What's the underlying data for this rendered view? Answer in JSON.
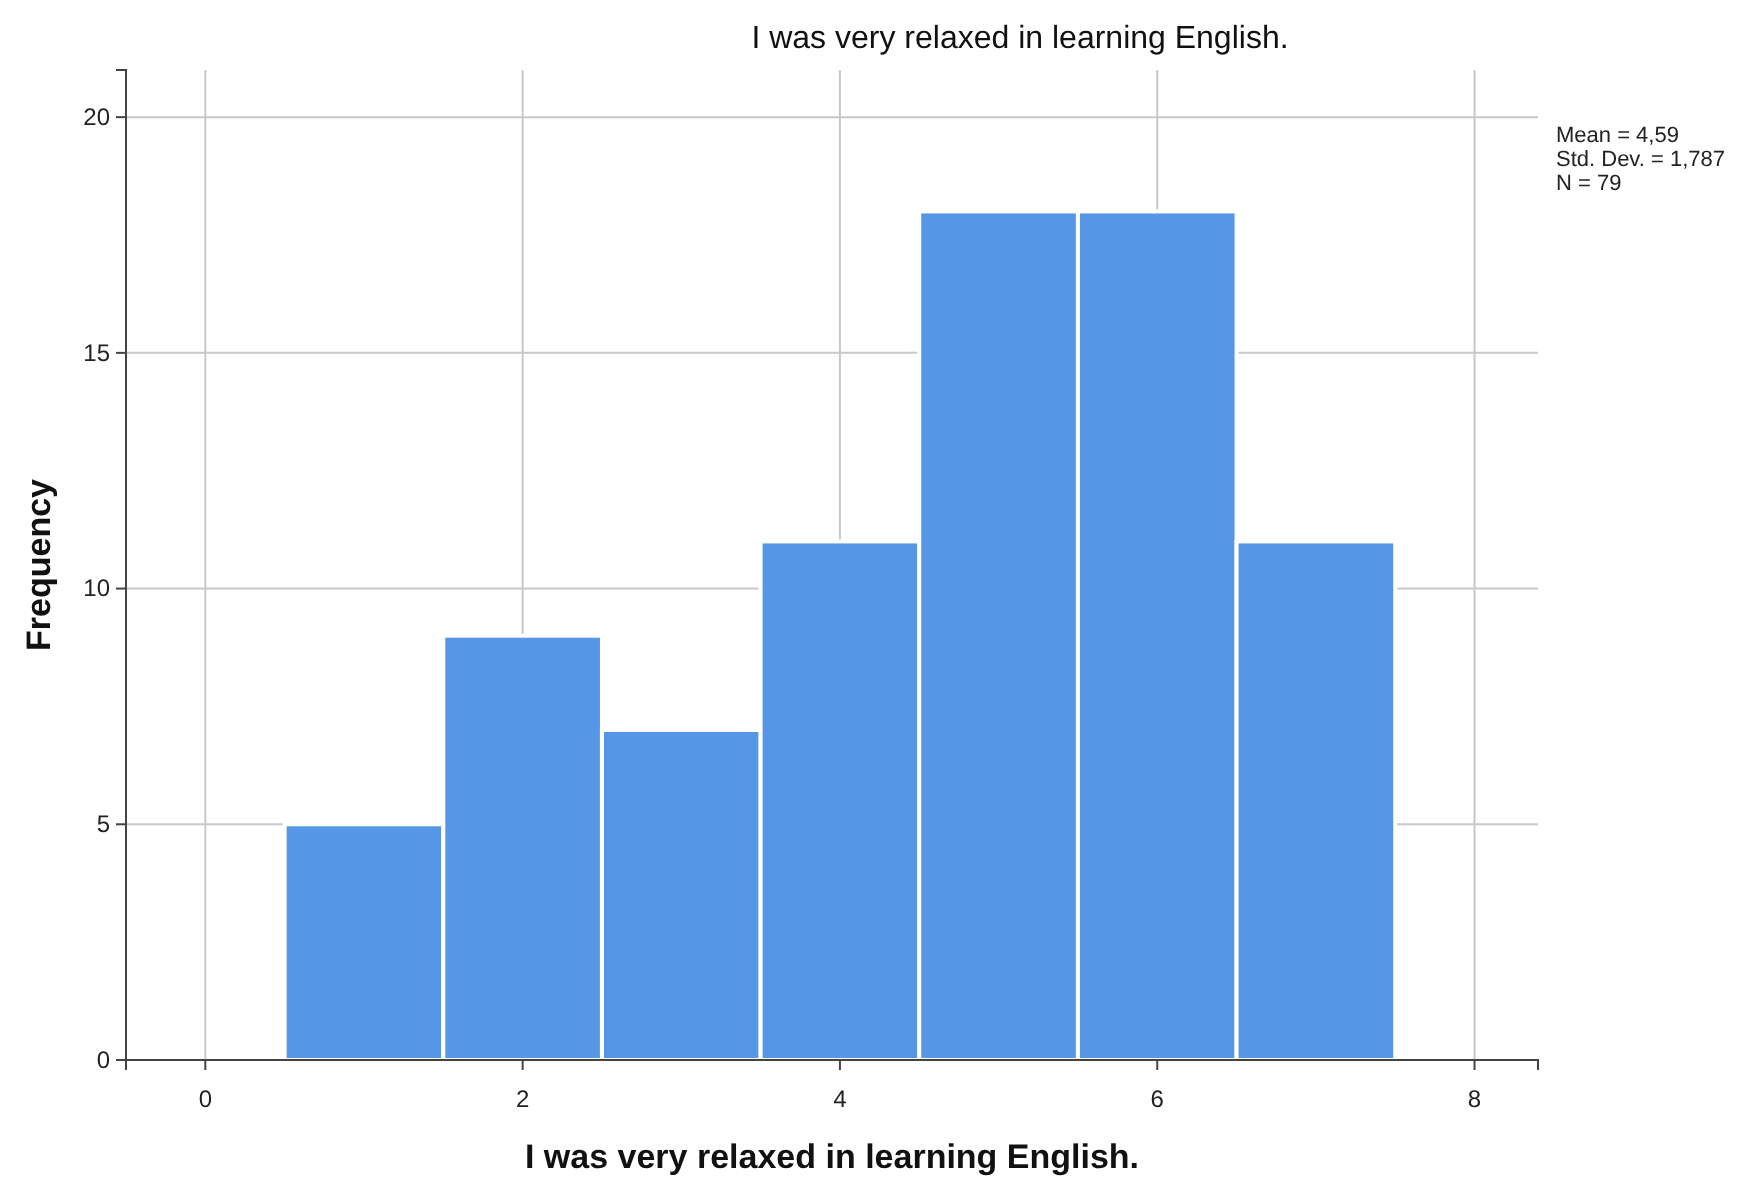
{
  "chart_data": {
    "type": "histogram",
    "title": "I was very relaxed in learning English.",
    "xlabel": "I was very relaxed in learning English.",
    "ylabel": "Frequency",
    "bins": [
      0.5,
      1.5,
      2.5,
      3.5,
      4.5,
      5.5,
      6.5,
      7.5
    ],
    "values": [
      5,
      9,
      7,
      11,
      18,
      18,
      11
    ],
    "color": "#5596e6",
    "xlim": [
      -0.5,
      8.4
    ],
    "xticks": [
      0,
      2,
      4,
      6,
      8
    ],
    "ylim": [
      0,
      21
    ],
    "yticks": [
      0,
      5,
      10,
      15,
      20
    ],
    "grid": true,
    "annotations": [
      "Mean = 4,59",
      "Std. Dev. = 1,787",
      "N = 79"
    ]
  }
}
